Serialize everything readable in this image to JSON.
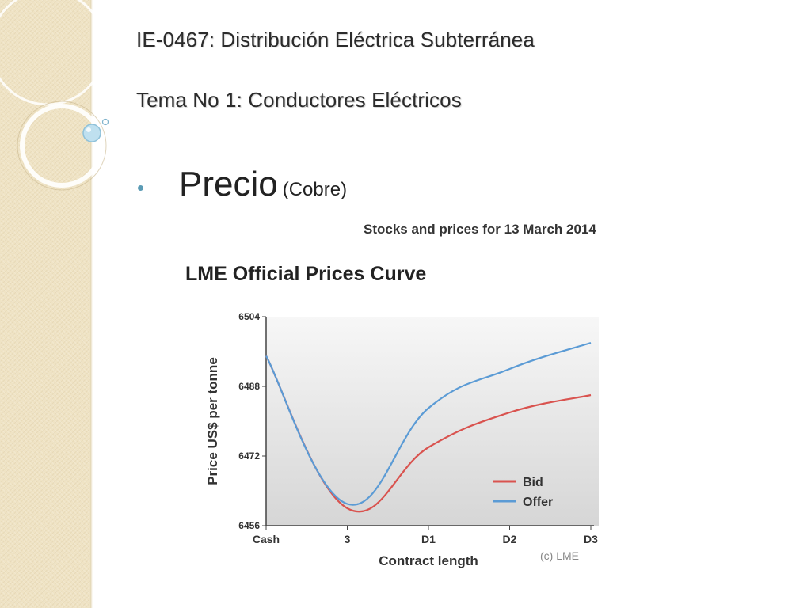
{
  "slide": {
    "title_line1": "IE-0467: Distribución Eléctrica Subterránea",
    "title_line2": "Tema No 1: Conductores Eléctricos",
    "bullet_main": "Precio",
    "bullet_sub": "(Cobre)"
  },
  "chart_panel": {
    "header": "Stocks and prices for 13 March 2014",
    "copyright": "(c) LME"
  },
  "colors": {
    "bid": "#d9534f",
    "offer": "#5b9bd5",
    "plot_bg_top": "#f7f7f7",
    "plot_bg_bottom": "#d6d6d6",
    "accent_bullet": "#5b9bb5"
  },
  "chart_data": {
    "type": "line",
    "title": "LME Official Prices Curve",
    "xlabel": "Contract length",
    "ylabel": "Price US$ per tonne",
    "categories": [
      "Cash",
      "3",
      "D1",
      "D2",
      "D3"
    ],
    "ylim": [
      6456,
      6504
    ],
    "yticks": [
      6456,
      6472,
      6488,
      6504
    ],
    "grid": false,
    "legend_position": "bottom-right",
    "series": [
      {
        "name": "Bid",
        "color_key": "bid",
        "values": [
          6495,
          6460,
          6474,
          6482,
          6486
        ]
      },
      {
        "name": "Offer",
        "color_key": "offer",
        "values": [
          6495,
          6461,
          6483,
          6492,
          6498
        ]
      }
    ]
  }
}
